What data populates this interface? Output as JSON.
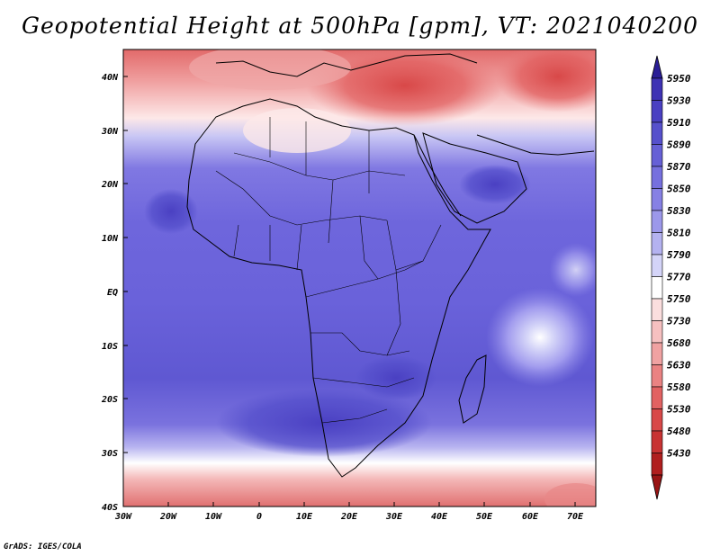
{
  "title": "Geopotential Height at 500hPa [gpm], VT: 2021040200",
  "credit": "GrADS: IGES/COLA",
  "lat_ticks": [
    "40N",
    "30N",
    "20N",
    "10N",
    "EQ",
    "10S",
    "20S",
    "30S",
    "40S"
  ],
  "lon_ticks": [
    "30W",
    "20W",
    "10W",
    "0",
    "10E",
    "20E",
    "30E",
    "40E",
    "50E",
    "60E",
    "70E"
  ],
  "colorbar": {
    "levels": [
      "5950",
      "5930",
      "5910",
      "5890",
      "5870",
      "5850",
      "5830",
      "5810",
      "5790",
      "5770",
      "5750",
      "5730",
      "5680",
      "5630",
      "5580",
      "5530",
      "5480",
      "5430"
    ],
    "colors": [
      "#3e32b4",
      "#4a40c2",
      "#5650cc",
      "#6660d6",
      "#7670de",
      "#8680e4",
      "#9c98ea",
      "#b4b2f0",
      "#d4d4f8",
      "#ffffff",
      "#fbdede",
      "#f6c0c0",
      "#f0a2a2",
      "#ea8282",
      "#e26262",
      "#d84848",
      "#c83232",
      "#b01e1e"
    ],
    "arrow_top": "#2a1e96",
    "arrow_bottom": "#981414"
  }
}
